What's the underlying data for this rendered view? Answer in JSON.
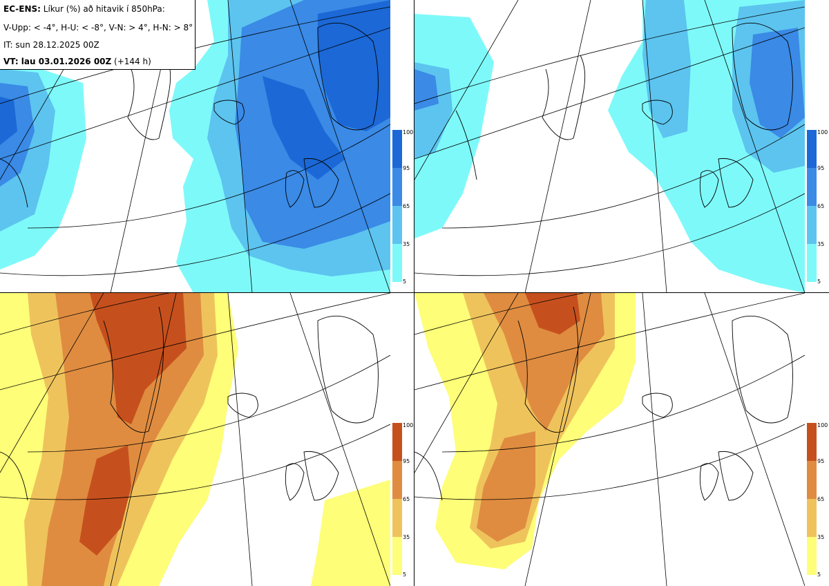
{
  "legend": {
    "title_bold": "EC-ENS:",
    "title_rest": "Líkur (%) að hitavik í 850hPa:",
    "thresholds": "V-Upp: < -4°, H-U: < -8°, V-N: > 4°, H-N: > 8°",
    "init_time": "IT: sun 28.12.2025 00Z",
    "valid_time": "VT: lau 03.01.2026 00Z",
    "lead_time": "(+144 h)"
  },
  "panels": [
    {
      "id": "V-Upp",
      "palette": "blue"
    },
    {
      "id": "H-U",
      "palette": "blue"
    },
    {
      "id": "V-N",
      "palette": "orange"
    },
    {
      "id": "H-N",
      "palette": "orange"
    }
  ],
  "colorbar": {
    "ticks": [
      "100",
      "95",
      "65",
      "35",
      "5"
    ],
    "blue": [
      "#1b68d6",
      "#3a8ae6",
      "#5cc4ef",
      "#7ef9f9"
    ],
    "orange": [
      "#c6501d",
      "#df8c40",
      "#efc35c",
      "#fefe78"
    ]
  }
}
